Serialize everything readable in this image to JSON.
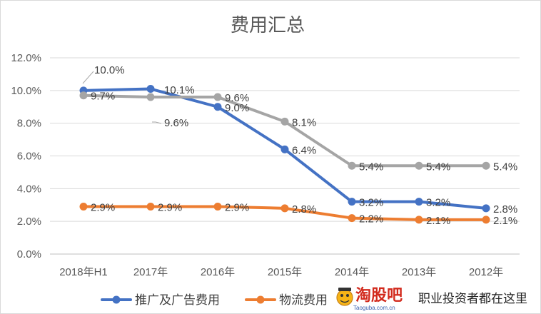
{
  "chart_data": {
    "type": "line",
    "title": "费用汇总",
    "categories": [
      "2018年H1",
      "2017年",
      "2016年",
      "2015年",
      "2014年",
      "2013年",
      "2012年"
    ],
    "ylim": [
      0,
      12
    ],
    "yticks": [
      "0.0%",
      "2.0%",
      "4.0%",
      "6.0%",
      "8.0%",
      "10.0%",
      "12.0%"
    ],
    "grid": true,
    "legend_position": "bottom",
    "series": [
      {
        "name": "推广及广告费用",
        "color": "#4472c4",
        "values": [
          10.0,
          10.1,
          9.0,
          6.4,
          3.2,
          3.2,
          2.8
        ],
        "labels": [
          "10.0%",
          "10.1%",
          "9.0%",
          "6.4%",
          "3.2%",
          "3.2%",
          "2.8%"
        ]
      },
      {
        "name": "物流费用",
        "color": "#ed7d31",
        "values": [
          2.9,
          2.9,
          2.9,
          2.8,
          2.2,
          2.1,
          2.1
        ],
        "labels": [
          "2.9%",
          "2.9%",
          "2.9%",
          "2.8%",
          "2.2%",
          "2.1%",
          "2.1%"
        ]
      },
      {
        "name": "",
        "color": "#a5a5a5",
        "values": [
          9.7,
          9.6,
          9.6,
          8.1,
          5.4,
          5.4,
          5.4
        ],
        "labels": [
          "9.7%",
          "9.6%",
          "9.6%",
          "8.1%",
          "5.4%",
          "5.4%",
          "5.4%"
        ]
      }
    ]
  },
  "watermark": {
    "logo": "淘股吧",
    "site": "Taoguba.com.cn",
    "slogan": "职业投资者都在这里"
  }
}
